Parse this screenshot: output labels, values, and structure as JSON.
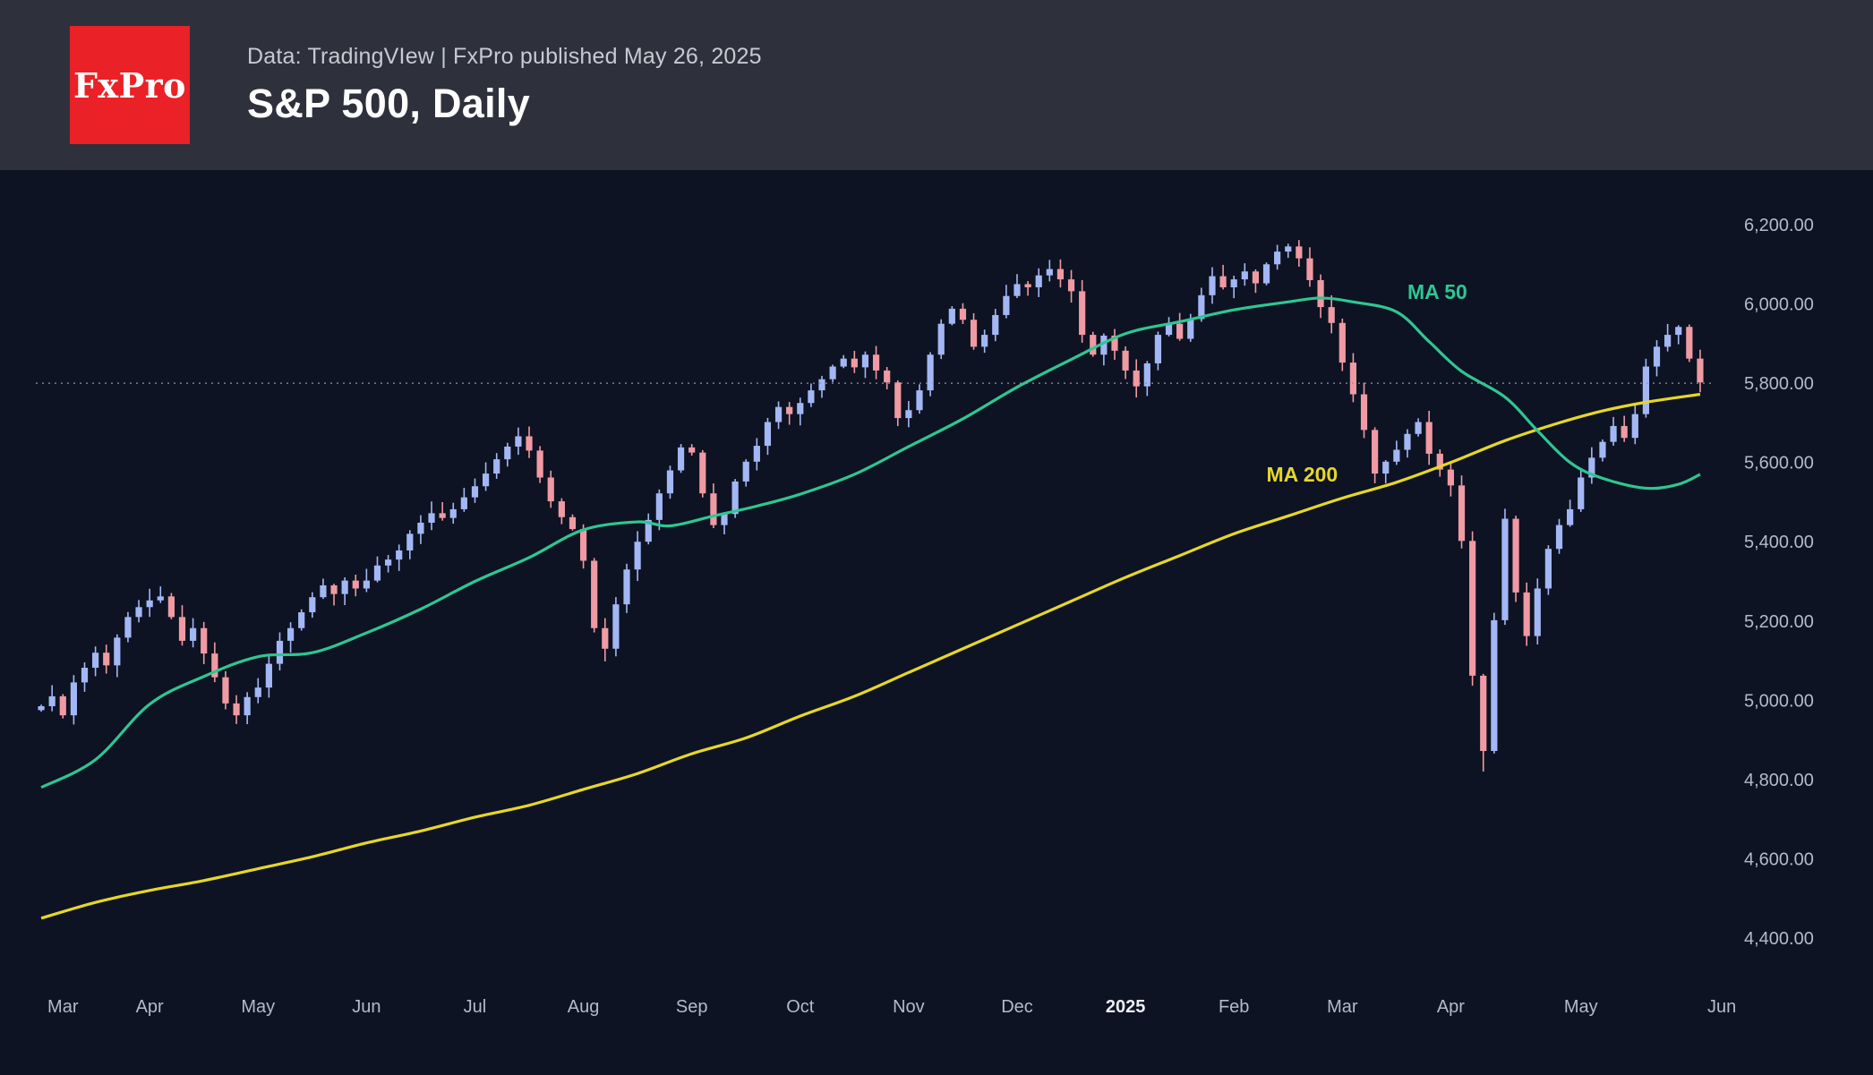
{
  "header": {
    "logo_text": "FxPro",
    "source_line": "Data: TradingVIew | FxPro published May 26, 2025",
    "title": "S&P 500, Daily"
  },
  "colors": {
    "background": "#0d1322",
    "header_bg": "#2e313c",
    "logo_red": "#ea2127",
    "title_text": "#ffffff",
    "muted_text": "#c7cad3",
    "axis_text": "#b4bac7",
    "axis_text_bold": "#eceef3",
    "candle_up": "#a3b7f5",
    "candle_down": "#f09aa3",
    "ma50": "#2fc693",
    "ma200": "#e6d728",
    "price_line": "#8f95a3"
  },
  "chart_data": {
    "type": "candlestick",
    "title": "S&P 500, Daily",
    "symbol": "S&P 500",
    "timeframe": "Daily",
    "published": "May 26, 2025",
    "source": "TradingView",
    "sample_days_per_point": 2,
    "y_axis": {
      "min": 4400,
      "max": 6200,
      "step": 200,
      "ticks": [
        {
          "v": 6200,
          "label": "6,200.00"
        },
        {
          "v": 6000,
          "label": "6,000.00"
        },
        {
          "v": 5800,
          "label": "5,800.00"
        },
        {
          "v": 5600,
          "label": "5,600.00"
        },
        {
          "v": 5400,
          "label": "5,400.00"
        },
        {
          "v": 5200,
          "label": "5,200.00"
        },
        {
          "v": 5000,
          "label": "5,000.00"
        },
        {
          "v": 4800,
          "label": "4,800.00"
        },
        {
          "v": 4600,
          "label": "4,600.00"
        },
        {
          "v": 4400,
          "label": "4,400.00"
        }
      ]
    },
    "x_axis": {
      "labels": [
        {
          "text": "Mar",
          "i": 2
        },
        {
          "text": "Apr",
          "i": 10
        },
        {
          "text": "May",
          "i": 20
        },
        {
          "text": "Jun",
          "i": 30
        },
        {
          "text": "Jul",
          "i": 40
        },
        {
          "text": "Aug",
          "i": 50
        },
        {
          "text": "Sep",
          "i": 60
        },
        {
          "text": "Oct",
          "i": 70
        },
        {
          "text": "Nov",
          "i": 80
        },
        {
          "text": "Dec",
          "i": 90
        },
        {
          "text": "2025",
          "i": 100,
          "bold": true
        },
        {
          "text": "Feb",
          "i": 110
        },
        {
          "text": "Mar",
          "i": 120
        },
        {
          "text": "Apr",
          "i": 130
        },
        {
          "text": "May",
          "i": 142
        },
        {
          "text": "Jun",
          "i": 155
        }
      ]
    },
    "open_first": 4975,
    "closes": [
      4985,
      5010,
      4962,
      5045,
      5082,
      5120,
      5088,
      5158,
      5210,
      5235,
      5252,
      5262,
      5210,
      5150,
      5182,
      5118,
      5058,
      4992,
      4962,
      5008,
      5032,
      5092,
      5150,
      5182,
      5222,
      5260,
      5290,
      5268,
      5302,
      5282,
      5302,
      5340,
      5355,
      5378,
      5420,
      5448,
      5472,
      5460,
      5482,
      5512,
      5540,
      5572,
      5608,
      5640,
      5666,
      5630,
      5562,
      5502,
      5462,
      5432,
      5352,
      5182,
      5130,
      5242,
      5330,
      5400,
      5455,
      5522,
      5580,
      5638,
      5625,
      5522,
      5442,
      5470,
      5552,
      5602,
      5642,
      5702,
      5740,
      5722,
      5750,
      5782,
      5810,
      5842,
      5862,
      5840,
      5872,
      5832,
      5802,
      5712,
      5732,
      5782,
      5872,
      5950,
      5988,
      5960,
      5892,
      5922,
      5972,
      6020,
      6050,
      6042,
      6072,
      6088,
      6062,
      6032,
      5922,
      5872,
      5920,
      5882,
      5832,
      5792,
      5850,
      5922,
      5950,
      5912,
      5962,
      6022,
      6070,
      6042,
      6062,
      6082,
      6052,
      6100,
      6132,
      6145,
      6115,
      6060,
      5992,
      5952,
      5852,
      5772,
      5682,
      5572,
      5602,
      5632,
      5672,
      5702,
      5622,
      5582,
      5542,
      5402,
      5062,
      4872,
      5202,
      5458,
      5272,
      5162,
      5282,
      5382,
      5442,
      5482,
      5562,
      5612,
      5652,
      5692,
      5662,
      5722,
      5842,
      5892,
      5922,
      5942,
      5862,
      5802
    ],
    "overrides": {
      "52": {
        "low": 5098
      },
      "115": {
        "high": 6152
      },
      "133": {
        "low": 4820
      }
    },
    "last_price_line": 5800,
    "ma50": {
      "label": "MA 50",
      "label_pos": {
        "i": 126,
        "price": 6012
      },
      "anchors": [
        [
          0,
          4780
        ],
        [
          5,
          4850
        ],
        [
          10,
          4990
        ],
        [
          15,
          5060
        ],
        [
          20,
          5110
        ],
        [
          25,
          5120
        ],
        [
          30,
          5170
        ],
        [
          35,
          5230
        ],
        [
          40,
          5300
        ],
        [
          45,
          5360
        ],
        [
          50,
          5430
        ],
        [
          55,
          5450
        ],
        [
          58,
          5440
        ],
        [
          62,
          5465
        ],
        [
          66,
          5490
        ],
        [
          70,
          5520
        ],
        [
          75,
          5570
        ],
        [
          80,
          5640
        ],
        [
          85,
          5710
        ],
        [
          90,
          5790
        ],
        [
          95,
          5860
        ],
        [
          100,
          5925
        ],
        [
          105,
          5955
        ],
        [
          110,
          5985
        ],
        [
          115,
          6005
        ],
        [
          118,
          6015
        ],
        [
          121,
          6005
        ],
        [
          125,
          5980
        ],
        [
          128,
          5905
        ],
        [
          131,
          5830
        ],
        [
          135,
          5765
        ],
        [
          138,
          5680
        ],
        [
          141,
          5600
        ],
        [
          144,
          5560
        ],
        [
          148,
          5535
        ],
        [
          151,
          5545
        ],
        [
          153,
          5570
        ]
      ]
    },
    "ma200": {
      "label": "MA 200",
      "label_pos": {
        "i": 113,
        "price": 5552
      },
      "anchors": [
        [
          0,
          4450
        ],
        [
          5,
          4490
        ],
        [
          10,
          4520
        ],
        [
          15,
          4545
        ],
        [
          20,
          4575
        ],
        [
          25,
          4605
        ],
        [
          30,
          4640
        ],
        [
          35,
          4670
        ],
        [
          40,
          4705
        ],
        [
          45,
          4735
        ],
        [
          50,
          4775
        ],
        [
          55,
          4815
        ],
        [
          60,
          4865
        ],
        [
          65,
          4905
        ],
        [
          70,
          4960
        ],
        [
          75,
          5010
        ],
        [
          80,
          5070
        ],
        [
          85,
          5130
        ],
        [
          90,
          5190
        ],
        [
          95,
          5250
        ],
        [
          100,
          5310
        ],
        [
          105,
          5365
        ],
        [
          110,
          5420
        ],
        [
          115,
          5465
        ],
        [
          120,
          5510
        ],
        [
          125,
          5550
        ],
        [
          130,
          5600
        ],
        [
          135,
          5655
        ],
        [
          140,
          5700
        ],
        [
          144,
          5730
        ],
        [
          148,
          5752
        ],
        [
          153,
          5772
        ]
      ]
    }
  }
}
